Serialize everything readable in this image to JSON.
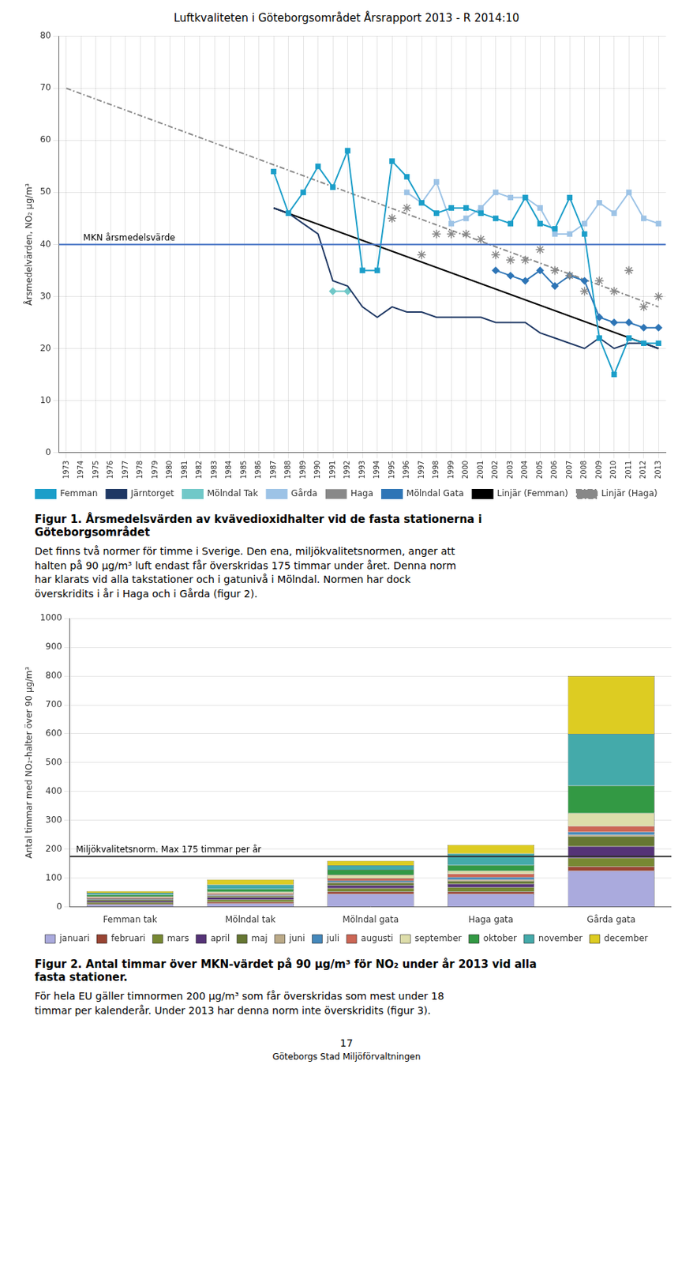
{
  "title": "Luftkvaliteten i Göteborgsområdet Årsrapport 2013 - R 2014:10",
  "chart_data": [
    {
      "type": "line",
      "ylabel": "Årsmedelvärden, NO₂ μg/m³",
      "xlim": [
        1972.5,
        2013.5
      ],
      "xticks": [
        1973,
        1974,
        1975,
        1976,
        1977,
        1978,
        1979,
        1980,
        1981,
        1982,
        1983,
        1984,
        1985,
        1986,
        1987,
        1988,
        1989,
        1990,
        1991,
        1992,
        1993,
        1994,
        1995,
        1996,
        1997,
        1998,
        1999,
        2000,
        2001,
        2002,
        2003,
        2004,
        2005,
        2006,
        2007,
        2008,
        2009,
        2010,
        2011,
        2012,
        2013
      ],
      "ylim": [
        0,
        80
      ],
      "yticks": [
        0,
        10,
        20,
        30,
        40,
        50,
        60,
        70,
        80
      ],
      "grid": true,
      "legend": "bottom",
      "series": [
        {
          "name": "Femman",
          "color": "#1B9EC9",
          "marker": "square",
          "line_style": "solid",
          "x": [
            1987,
            1988,
            1989,
            1990,
            1991,
            1992,
            1993,
            1994,
            1995,
            1996,
            1997,
            1998,
            1999,
            2000,
            2001,
            2002,
            2003,
            2004,
            2005,
            2006,
            2007,
            2008,
            2009,
            2010,
            2011,
            2012,
            2013
          ],
          "values": [
            54,
            46,
            50,
            55,
            51,
            58,
            35,
            35,
            56,
            53,
            48,
            46,
            47,
            47,
            46,
            45,
            44,
            49,
            44,
            43,
            49,
            42,
            22,
            15,
            22,
            21,
            21
          ]
        },
        {
          "name": "Järntorget",
          "color": "#1F3864",
          "marker": "none",
          "line_style": "solid",
          "x": [
            1987,
            1988,
            1989,
            1990,
            1991,
            1992,
            1993,
            1994,
            1995,
            1996,
            1997,
            1998,
            1999,
            2000,
            2001,
            2002,
            2003,
            2004,
            2005,
            2006,
            2007,
            2008,
            2009,
            2010,
            2011,
            2012,
            2013
          ],
          "values": [
            47,
            46,
            44,
            42,
            33,
            32,
            28,
            26,
            28,
            27,
            27,
            26,
            26,
            26,
            26,
            25,
            25,
            25,
            23,
            22,
            21,
            20,
            22,
            20,
            21,
            21,
            20
          ]
        },
        {
          "name": "Mölndal Tak",
          "color": "#70C8C8",
          "marker": "diamond",
          "line_style": "solid",
          "x": [
            1991,
            1992
          ],
          "values": [
            31,
            31
          ]
        },
        {
          "name": "Gårda",
          "color": "#9DC3E6",
          "marker": "square",
          "line_style": "solid",
          "x": [
            1996,
            1997,
            1998,
            1999,
            2000,
            2001,
            2002,
            2003,
            2004,
            2005,
            2006,
            2007,
            2008,
            2009,
            2010,
            2011,
            2012,
            2013
          ],
          "values": [
            50,
            48,
            52,
            44,
            45,
            47,
            50,
            49,
            49,
            47,
            42,
            42,
            44,
            48,
            46,
            50,
            45,
            44
          ]
        },
        {
          "name": "Haga",
          "color": "#888888",
          "marker": "star",
          "line_style": "none",
          "x": [
            1995,
            1996,
            1997,
            1998,
            1999,
            2000,
            2001,
            2002,
            2003,
            2004,
            2005,
            2006,
            2007,
            2008,
            2009,
            2010,
            2011,
            2012,
            2013
          ],
          "values": [
            45,
            47,
            38,
            42,
            42,
            42,
            41,
            38,
            37,
            37,
            39,
            35,
            34,
            31,
            33,
            31,
            35,
            28,
            30
          ]
        },
        {
          "name": "Mölndal Gata",
          "color": "#2E75B6",
          "marker": "diamond",
          "line_style": "solid",
          "x": [
            2002,
            2003,
            2004,
            2005,
            2006,
            2007,
            2008,
            2009,
            2010,
            2011,
            2012,
            2013
          ],
          "values": [
            35,
            34,
            33,
            35,
            32,
            34,
            33,
            26,
            25,
            25,
            24,
            24
          ]
        },
        {
          "name": "Linjär (Femman)",
          "color": "#000000",
          "marker": "none",
          "line_style": "solid",
          "x": [
            1987,
            2013
          ],
          "values": [
            47,
            20
          ]
        },
        {
          "name": "Linjär (Haga)",
          "color": "#888888",
          "marker": "none",
          "line_style": "dashdot",
          "x": [
            1973,
            2013
          ],
          "values": [
            70,
            28
          ]
        }
      ],
      "annotations": [
        {
          "type": "hline",
          "y": 40,
          "text": "MKN årsmedelsvärde",
          "color": "#4472C4"
        }
      ],
      "caption": "Figur 1. Årsmedelsvärden av kvävedioxidhalter vid de fasta stationerna i\nGöteborgsområdet",
      "text": "Det finns två normer för timme i Sverige. Den ena, miljökvalitetsnormen, anger att\nhalten på 90 μg/m³ luft endast får överskridas 175 timmar under året. Denna norm\nhar klarats vid alla takstationer och i gatunivå i Mölndal. Normen har dock\növerskridits i år i Haga och i Gårda (figur 2)."
    },
    {
      "type": "bar",
      "stacked": true,
      "ylabel": "Antal timmar med NO₂-halter över 90 μg/m³",
      "categories": [
        "Femman tak",
        "Mölndal tak",
        "Mölndal gata",
        "Haga gata",
        "Gårda gata"
      ],
      "ylim": [
        0,
        1000
      ],
      "yticks": [
        0,
        100,
        200,
        300,
        400,
        500,
        600,
        700,
        800,
        900,
        1000
      ],
      "grid": "y",
      "legend": "bottom",
      "series": [
        {
          "name": "januari",
          "color": "#AAAADD",
          "values": [
            8,
            12,
            45,
            45,
            125
          ]
        },
        {
          "name": "februari",
          "color": "#994433",
          "values": [
            3,
            5,
            8,
            8,
            15
          ]
        },
        {
          "name": "mars",
          "color": "#778833",
          "values": [
            5,
            8,
            12,
            15,
            30
          ]
        },
        {
          "name": "april",
          "color": "#553377",
          "values": [
            5,
            8,
            10,
            12,
            40
          ]
        },
        {
          "name": "maj",
          "color": "#667733",
          "values": [
            4,
            5,
            8,
            10,
            35
          ]
        },
        {
          "name": "juni",
          "color": "#BBAA88",
          "values": [
            2,
            2,
            3,
            5,
            5
          ]
        },
        {
          "name": "juli",
          "color": "#4488BB",
          "values": [
            2,
            3,
            5,
            8,
            10
          ]
        },
        {
          "name": "augusti",
          "color": "#CC6655",
          "values": [
            3,
            4,
            8,
            12,
            20
          ]
        },
        {
          "name": "september",
          "color": "#DDDDAA",
          "values": [
            4,
            5,
            12,
            10,
            45
          ]
        },
        {
          "name": "oktober",
          "color": "#339944",
          "values": [
            6,
            10,
            18,
            20,
            95
          ]
        },
        {
          "name": "november",
          "color": "#44AAAA",
          "values": [
            7,
            15,
            15,
            40,
            180
          ]
        },
        {
          "name": "december",
          "color": "#DDCC22",
          "values": [
            6,
            18,
            16,
            30,
            200
          ]
        }
      ],
      "annotations": [
        {
          "type": "hline",
          "y": 175,
          "text": "Miljökvalitetsnorm. Max 175 timmar per år",
          "color": "#333333"
        }
      ],
      "caption": "Figur 2. Antal timmar över MKN-värdet på 90 μg/m³ för NO₂ under år 2013 vid alla\nfasta stationer.",
      "text": "För hela EU gäller timnormen 200 μg/m³ som får överskridas som mest under 18\ntimmar per kalenderår. Under 2013 har denna norm inte överskridits (figur 3)."
    }
  ],
  "footer": [
    "17",
    "Göteborgs Stad Miljöförvaltningen"
  ]
}
